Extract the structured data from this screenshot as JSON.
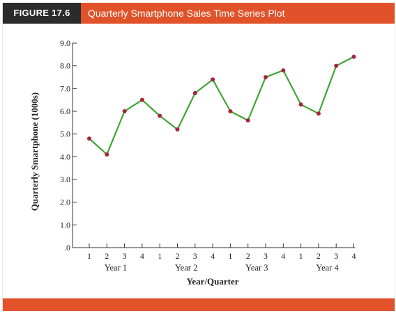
{
  "figure": {
    "label": "FIGURE 17.6",
    "title": "Quarterly Smartphone Sales Time Series Plot"
  },
  "colors": {
    "header": "#e2522a",
    "label_bg": "#2b2b2b",
    "line": "#3fa535",
    "marker": "#a3263a"
  },
  "chart_data": {
    "type": "line",
    "title": "Quarterly Smartphone Sales Time Series Plot",
    "xlabel": "Year/Quarter",
    "ylabel": "Quarterly Smartphone (1000s)",
    "ylim": [
      0,
      9
    ],
    "yticks": [
      ".0",
      "1.0",
      "2.0",
      "3.0",
      "4.0",
      "5.0",
      "6.0",
      "7.0",
      "8.0",
      "9.0"
    ],
    "quarters": [
      "1",
      "2",
      "3",
      "4",
      "1",
      "2",
      "3",
      "4",
      "1",
      "2",
      "3",
      "4",
      "1",
      "2",
      "3",
      "4"
    ],
    "years": [
      "Year 1",
      "Year 2",
      "Year 3",
      "Year 4"
    ],
    "values": [
      4.8,
      4.1,
      6.0,
      6.5,
      5.8,
      5.2,
      6.8,
      7.4,
      6.0,
      5.6,
      7.5,
      7.8,
      6.3,
      5.9,
      8.0,
      8.4
    ],
    "grid": false,
    "marker": "dot"
  }
}
